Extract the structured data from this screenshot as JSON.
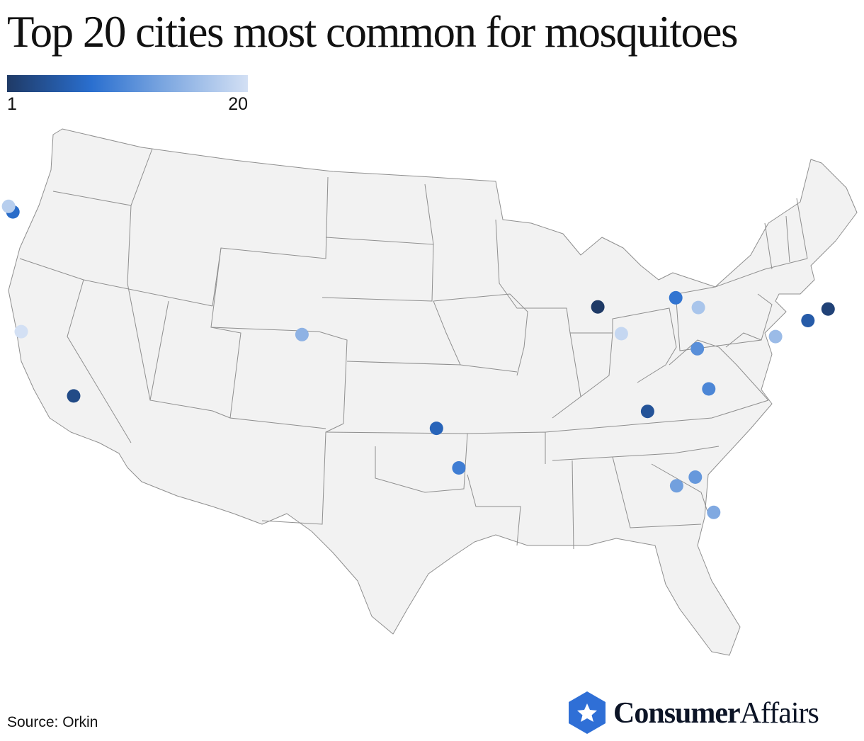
{
  "title": "Top 20 cities most common for mosquitoes",
  "legend": {
    "min_label": "1",
    "max_label": "20",
    "colors": [
      "#1f3a66",
      "#2a6fcf",
      "#7ba6e0",
      "#d3e0f4"
    ]
  },
  "map": {
    "region": "contiguous-united-states",
    "base_color": "#f2f2f2",
    "border_color": "#8f8f8f",
    "markers": [
      {
        "rank": 1,
        "lon": -87.63,
        "lat": 41.88
      },
      {
        "rank": 2,
        "lon": -74.01,
        "lat": 40.71
      },
      {
        "rank": 3,
        "lon": -118.24,
        "lat": 34.05
      },
      {
        "rank": 4,
        "lon": -84.39,
        "lat": 33.75
      },
      {
        "rank": 5,
        "lon": -75.17,
        "lat": 39.95
      },
      {
        "rank": 6,
        "lon": -96.8,
        "lat": 32.78
      },
      {
        "rank": 7,
        "lon": -122.33,
        "lat": 47.61
      },
      {
        "rank": 8,
        "lon": -83.05,
        "lat": 42.33
      },
      {
        "rank": 9,
        "lon": -95.37,
        "lat": 29.76
      },
      {
        "rank": 10,
        "lon": -80.84,
        "lat": 35.23
      },
      {
        "rank": 11,
        "lon": -81.63,
        "lat": 38.35
      },
      {
        "rank": 12,
        "lon": -81.38,
        "lat": 28.54
      },
      {
        "rank": 13,
        "lon": -82.46,
        "lat": 27.95
      },
      {
        "rank": 14,
        "lon": -80.19,
        "lat": 25.76
      },
      {
        "rank": 15,
        "lon": -104.99,
        "lat": 39.74
      },
      {
        "rank": 16,
        "lon": -77.04,
        "lat": 38.91
      },
      {
        "rank": 17,
        "lon": -81.69,
        "lat": 41.5
      },
      {
        "rank": 18,
        "lon": -122.6,
        "lat": 48.0
      },
      {
        "rank": 19,
        "lon": -86.16,
        "lat": 39.77
      },
      {
        "rank": 20,
        "lon": -121.5,
        "lat": 38.58
      }
    ]
  },
  "source": "Source: Orkin",
  "brand": {
    "name_bold": "Consumer",
    "name_light": "Affairs",
    "logo_color": "#2f6fd6",
    "icon": "star-hexagon-icon"
  }
}
